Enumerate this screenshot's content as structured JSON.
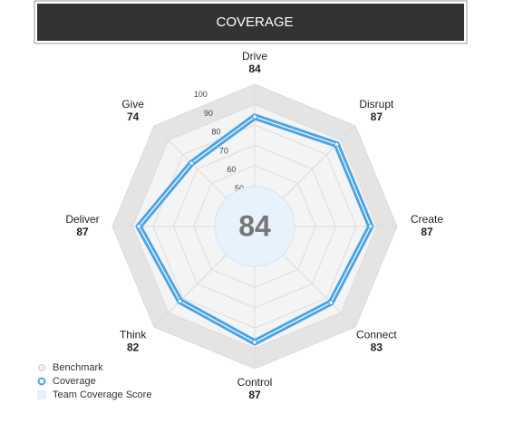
{
  "chart_data": {
    "type": "radar",
    "title": "COVERAGE",
    "categories": [
      "Drive",
      "Disrupt",
      "Create",
      "Connect",
      "Control",
      "Think",
      "Deliver",
      "Give"
    ],
    "series": [
      {
        "name": "Benchmark",
        "color": "#e4e4e4",
        "values": [
          100,
          100,
          100,
          100,
          100,
          100,
          100,
          100
        ]
      },
      {
        "name": "Coverage",
        "color": "#4aa3ea",
        "values": [
          84,
          87,
          87,
          83,
          87,
          82,
          87,
          74
        ]
      }
    ],
    "rlim": [
      30,
      100
    ],
    "rticks": [
      50,
      60,
      70,
      80,
      90,
      100
    ],
    "center_label": "Team Coverage Score",
    "center_value": 84,
    "center_color": "#e8f2fc"
  }
}
